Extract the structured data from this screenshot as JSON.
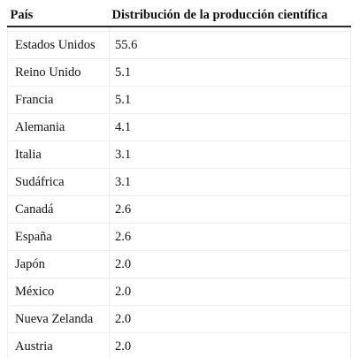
{
  "table": {
    "headers": [
      "País",
      "Distribución de la producción científica"
    ],
    "rows": [
      {
        "country": "Estados Unidos",
        "value": "55.6"
      },
      {
        "country": "Reino Unido",
        "value": "5.1"
      },
      {
        "country": "Francia",
        "value": "5.1"
      },
      {
        "country": "Alemania",
        "value": "4.1"
      },
      {
        "country": "Italia",
        "value": "3.1"
      },
      {
        "country": "Sudáfrica",
        "value": "3.1"
      },
      {
        "country": "Canadá",
        "value": "2.6"
      },
      {
        "country": "España",
        "value": "2.6"
      },
      {
        "country": "Japón",
        "value": "2.0"
      },
      {
        "country": "México",
        "value": "2.0"
      },
      {
        "country": "Nueva Zelanda",
        "value": "2.0"
      },
      {
        "country": "Austria",
        "value": "2.0"
      }
    ]
  }
}
